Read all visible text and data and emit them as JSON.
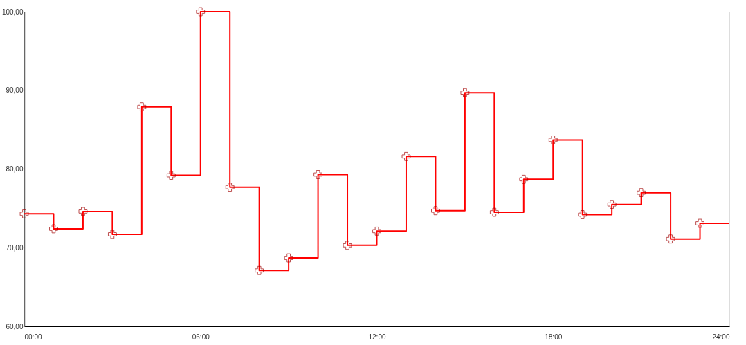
{
  "chart_data": {
    "type": "step",
    "x": [
      0,
      1,
      2,
      3,
      4,
      5,
      6,
      7,
      8,
      9,
      10,
      11,
      12,
      13,
      14,
      15,
      16,
      17,
      18,
      19,
      20,
      21,
      22,
      23,
      24
    ],
    "series": [
      {
        "color": "#ff0000",
        "values": [
          74.3,
          72.4,
          74.6,
          71.7,
          87.9,
          79.2,
          100.0,
          77.7,
          67.1,
          68.7,
          79.3,
          70.3,
          72.1,
          81.6,
          74.7,
          89.7,
          74.5,
          78.7,
          83.7,
          74.2,
          75.5,
          77.0,
          71.1,
          73.1,
          73.1
        ]
      }
    ],
    "xlim": [
      0,
      24
    ],
    "xticks": [
      {
        "value": 0,
        "label": "00:00"
      },
      {
        "value": 6,
        "label": "06:00"
      },
      {
        "value": 12,
        "label": "12:00"
      },
      {
        "value": 18,
        "label": "18:00"
      },
      {
        "value": 24,
        "label": "24:00"
      }
    ],
    "ylim": [
      60,
      100
    ],
    "yticks": [
      {
        "value": 60,
        "label": "60,00"
      },
      {
        "value": 70,
        "label": "70,00"
      },
      {
        "value": 80,
        "label": "80,00"
      },
      {
        "value": 90,
        "label": "90,00"
      },
      {
        "value": 100,
        "label": "100,00"
      }
    ],
    "grid": false,
    "marker": "cross",
    "line_style": "solid"
  }
}
